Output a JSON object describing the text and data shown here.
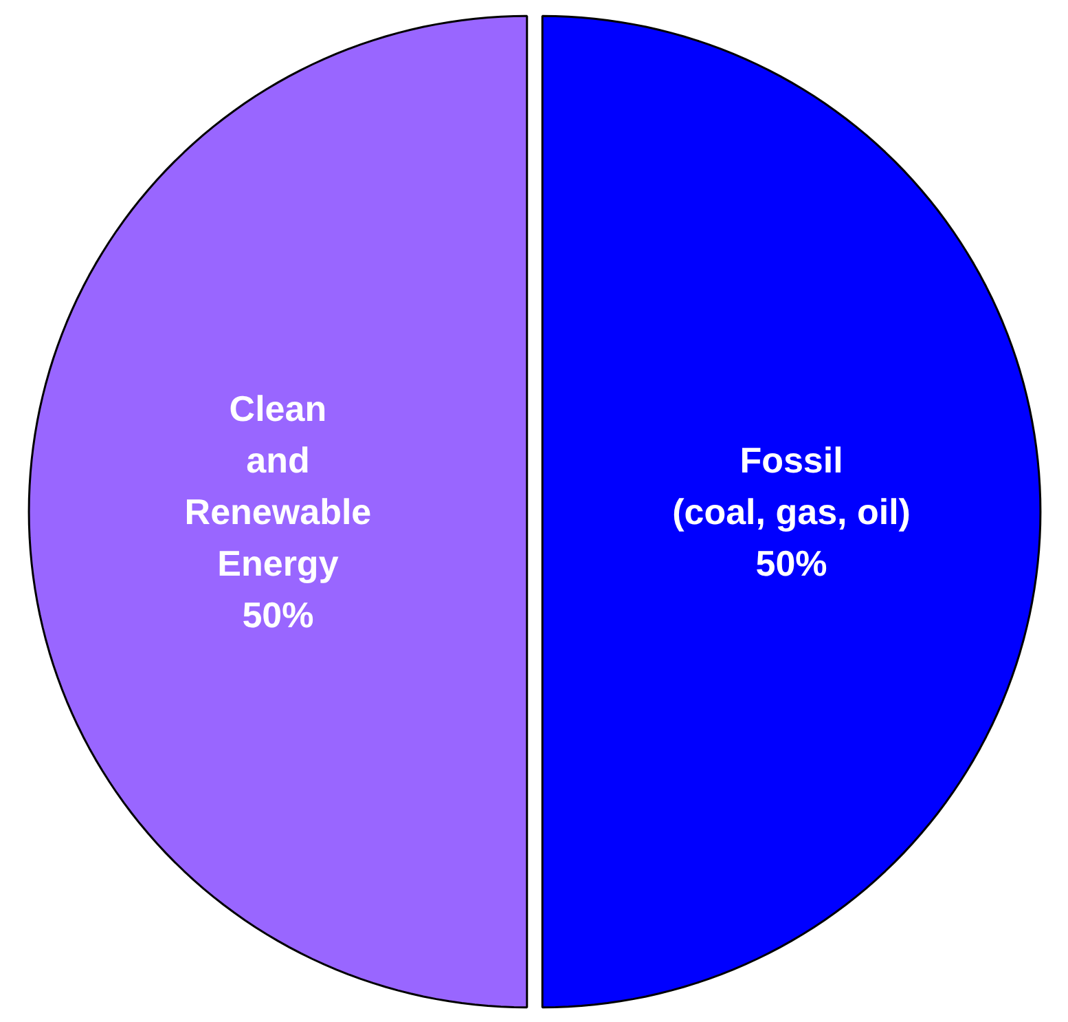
{
  "chart_data": {
    "type": "pie",
    "categories": [
      "Clean\nand\nRenewable\nEnergy",
      "Fossil\n(coal, gas, oil)"
    ],
    "values": [
      50,
      50
    ],
    "colors": [
      "#9966ff",
      "#0000ff"
    ],
    "value_labels": [
      "50%",
      "50%"
    ]
  }
}
